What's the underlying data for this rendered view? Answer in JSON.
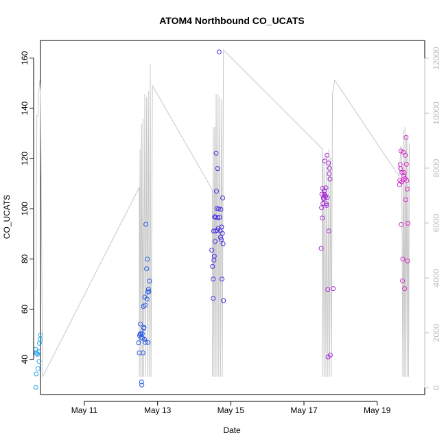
{
  "chart_data": {
    "type": "scatter",
    "title": "ATOM4 Northbound CO_UCATS",
    "xlabel": "Date",
    "ylabel": "CO_UCATS",
    "x_unit": "days (May)",
    "xlim": [
      9.8,
      20.3
    ],
    "ylim": [
      26,
      167
    ],
    "x_ticks": [
      {
        "label": "May 11",
        "value": 11
      },
      {
        "label": "May 13",
        "value": 13
      },
      {
        "label": "May 15",
        "value": 15
      },
      {
        "label": "May 17",
        "value": 17
      },
      {
        "label": "May 19",
        "value": 19
      }
    ],
    "y_ticks": [
      {
        "label": "40",
        "value": 40
      },
      {
        "label": "60",
        "value": 60
      },
      {
        "label": "80",
        "value": 80
      },
      {
        "label": "100",
        "value": 100
      },
      {
        "label": "120",
        "value": 120
      },
      {
        "label": "140",
        "value": 140
      },
      {
        "label": "160",
        "value": 160
      }
    ],
    "right_axis": {
      "label": "",
      "ylim": [
        -250,
        12650
      ],
      "ticks": [
        {
          "label": "0",
          "value": 0
        },
        {
          "label": "2000",
          "value": 2000
        },
        {
          "label": "4000",
          "value": 4000
        },
        {
          "label": "6000",
          "value": 6000
        },
        {
          "label": "8000",
          "value": 8000
        },
        {
          "label": "10000",
          "value": 10000
        },
        {
          "label": "12000",
          "value": 12000
        }
      ],
      "color": "#bdbdbd"
    },
    "altitude_line": {
      "color": "#c8c8c8",
      "points": [
        [
          9.68,
          3600
        ],
        [
          9.7,
          9900
        ],
        [
          9.72,
          9900
        ],
        [
          9.73,
          9900
        ],
        [
          9.75,
          10700
        ],
        [
          9.78,
          11200
        ],
        [
          9.8,
          10800
        ],
        [
          9.86,
          400
        ],
        [
          12.5,
          7300
        ],
        [
          12.5,
          400
        ],
        [
          12.52,
          8700
        ],
        [
          12.54,
          400
        ],
        [
          12.56,
          9600
        ],
        [
          12.58,
          400
        ],
        [
          12.6,
          9800
        ],
        [
          12.62,
          400
        ],
        [
          12.65,
          10700
        ],
        [
          12.67,
          400
        ],
        [
          12.7,
          10600
        ],
        [
          12.72,
          400
        ],
        [
          12.75,
          10800
        ],
        [
          12.77,
          400
        ],
        [
          12.8,
          11800
        ],
        [
          12.82,
          400
        ],
        [
          12.86,
          11000
        ],
        [
          14.5,
          7200
        ],
        [
          14.5,
          400
        ],
        [
          14.52,
          9500
        ],
        [
          14.54,
          400
        ],
        [
          14.56,
          9500
        ],
        [
          14.58,
          400
        ],
        [
          14.6,
          10700
        ],
        [
          14.62,
          400
        ],
        [
          14.65,
          10700
        ],
        [
          14.67,
          400
        ],
        [
          14.7,
          10600
        ],
        [
          14.72,
          400
        ],
        [
          14.75,
          10500
        ],
        [
          14.77,
          400
        ],
        [
          14.8,
          12300
        ],
        [
          17.5,
          8700
        ],
        [
          17.5,
          400
        ],
        [
          17.52,
          8400
        ],
        [
          17.55,
          400
        ],
        [
          17.57,
          8400
        ],
        [
          17.6,
          400
        ],
        [
          17.62,
          8500
        ],
        [
          17.65,
          400
        ],
        [
          17.68,
          8700
        ],
        [
          17.7,
          400
        ],
        [
          17.73,
          8400
        ],
        [
          17.75,
          400
        ],
        [
          17.78,
          10700
        ],
        [
          17.84,
          11200
        ],
        [
          19.6,
          7700
        ],
        [
          19.65,
          8800
        ],
        [
          19.67,
          8700
        ],
        [
          19.7,
          400
        ],
        [
          19.72,
          9400
        ],
        [
          19.74,
          400
        ],
        [
          19.76,
          9500
        ],
        [
          19.78,
          400
        ],
        [
          19.8,
          9200
        ],
        [
          19.82,
          400
        ],
        [
          19.84,
          9100
        ],
        [
          19.86,
          400
        ],
        [
          19.88,
          8900
        ]
      ]
    },
    "series": [
      {
        "color": "#29a7e8",
        "points": [
          [
            9.67,
            28.9
          ],
          [
            9.67,
            44.0
          ],
          [
            9.68,
            42.6
          ],
          [
            9.69,
            34.2
          ],
          [
            9.7,
            42.5
          ],
          [
            9.72,
            42.0
          ],
          [
            9.73,
            36.3
          ],
          [
            9.74,
            43.1
          ],
          [
            9.76,
            39.2
          ],
          [
            9.77,
            46.4
          ],
          [
            9.79,
            47.9
          ],
          [
            9.8,
            49.7
          ]
        ]
      },
      {
        "color": "#2456e6",
        "points": [
          [
            12.48,
            46.6
          ],
          [
            12.5,
            42.6
          ],
          [
            12.51,
            49.4
          ],
          [
            12.52,
            50.0
          ],
          [
            12.53,
            54.1
          ],
          [
            12.54,
            50.3
          ],
          [
            12.55,
            48.5
          ],
          [
            12.56,
            31.0
          ],
          [
            12.57,
            29.8
          ],
          [
            12.58,
            50.2
          ],
          [
            12.59,
            48.5
          ],
          [
            12.6,
            42.6
          ],
          [
            12.61,
            61.1
          ],
          [
            12.62,
            52.4
          ],
          [
            12.63,
            52.7
          ],
          [
            12.64,
            48.0
          ],
          [
            12.65,
            64.8
          ],
          [
            12.66,
            61.6
          ],
          [
            12.67,
            46.7
          ],
          [
            12.68,
            93.8
          ],
          [
            12.7,
            76.1
          ],
          [
            12.71,
            64.0
          ],
          [
            12.72,
            79.9
          ],
          [
            12.73,
            66.8
          ],
          [
            12.74,
            46.7
          ],
          [
            12.75,
            68.0
          ],
          [
            12.76,
            67.0
          ],
          [
            12.78,
            71.2
          ]
        ]
      },
      {
        "color": "#3f2ce3",
        "points": [
          [
            14.48,
            83.5
          ],
          [
            14.5,
            77.0
          ],
          [
            14.52,
            64.3
          ],
          [
            14.52,
            72.0
          ],
          [
            14.53,
            91.1
          ],
          [
            14.54,
            79.5
          ],
          [
            14.55,
            81.1
          ],
          [
            14.56,
            96.8
          ],
          [
            14.57,
            87.0
          ],
          [
            14.58,
            91.1
          ],
          [
            14.59,
            96.6
          ],
          [
            14.6,
            122.1
          ],
          [
            14.61,
            107.0
          ],
          [
            14.62,
            100.1
          ],
          [
            14.63,
            91.4
          ],
          [
            14.64,
            116.0
          ],
          [
            14.65,
            96.4
          ],
          [
            14.66,
            92.2
          ],
          [
            14.67,
            100.0
          ],
          [
            14.68,
            162.4
          ],
          [
            14.7,
            96.6
          ],
          [
            14.71,
            91.3
          ],
          [
            14.72,
            88.6
          ],
          [
            14.73,
            99.7
          ],
          [
            14.74,
            87.7
          ],
          [
            14.75,
            92.7
          ],
          [
            14.76,
            72.0
          ],
          [
            14.77,
            90.2
          ],
          [
            14.78,
            104.3
          ],
          [
            14.79,
            86.0
          ],
          [
            14.8,
            63.4
          ]
        ]
      },
      {
        "color": "#a52ad6",
        "points": [
          [
            17.47,
            84.2
          ],
          [
            17.48,
            100.4
          ],
          [
            17.49,
            105.8
          ],
          [
            17.5,
            96.3
          ],
          [
            17.51,
            108.1
          ],
          [
            17.52,
            102.1
          ],
          [
            17.53,
            104.3
          ],
          [
            17.54,
            103.9
          ],
          [
            17.55,
            105.8
          ],
          [
            17.56,
            107.2
          ],
          [
            17.57,
            119.0
          ],
          [
            17.58,
            105.3
          ],
          [
            17.59,
            104.8
          ],
          [
            17.6,
            108.3
          ],
          [
            17.61,
            102.0
          ],
          [
            17.62,
            101.3
          ],
          [
            17.63,
            121.3
          ],
          [
            17.64,
            104.5
          ],
          [
            17.65,
            67.8
          ],
          [
            17.66,
            41.0
          ],
          [
            17.67,
            118.2
          ],
          [
            17.68,
            91.1
          ],
          [
            17.69,
            113.9
          ],
          [
            17.7,
            116.1
          ],
          [
            17.71,
            111.8
          ],
          [
            17.72,
            41.7
          ],
          [
            17.8,
            68.2
          ]
        ]
      },
      {
        "color": "#d629c8",
        "points": [
          [
            19.61,
            109.6
          ],
          [
            19.62,
            111.3
          ],
          [
            19.63,
            117.6
          ],
          [
            19.64,
            116.0
          ],
          [
            19.65,
            123.0
          ],
          [
            19.66,
            93.7
          ],
          [
            19.67,
            110.7
          ],
          [
            19.68,
            114.4
          ],
          [
            19.69,
            71.3
          ],
          [
            19.7,
            79.9
          ],
          [
            19.71,
            111.5
          ],
          [
            19.72,
            122.4
          ],
          [
            19.73,
            113.0
          ],
          [
            19.74,
            114.4
          ],
          [
            19.75,
            68.2
          ],
          [
            19.76,
            112.0
          ],
          [
            19.77,
            121.3
          ],
          [
            19.78,
            103.6
          ],
          [
            19.79,
            128.4
          ],
          [
            19.8,
            117.7
          ],
          [
            19.81,
            111.2
          ],
          [
            19.82,
            107.8
          ],
          [
            19.83,
            79.2
          ],
          [
            19.84,
            94.2
          ]
        ]
      }
    ]
  }
}
